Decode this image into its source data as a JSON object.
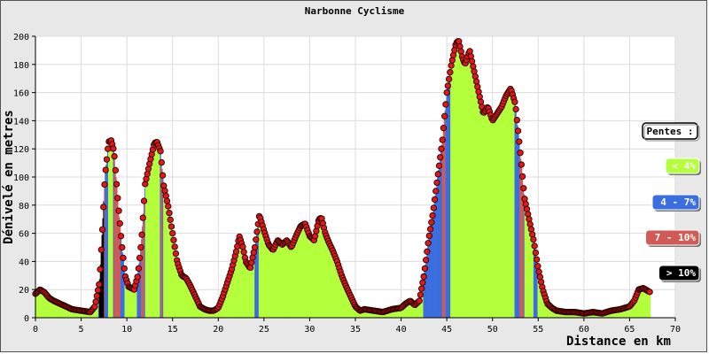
{
  "chart_data": {
    "type": "area",
    "title": "Narbonne Cyclisme",
    "xlabel": "Distance en km",
    "ylabel": "Dénivelé en metres",
    "xlim": [
      0,
      70
    ],
    "ylim": [
      0,
      200
    ],
    "x_ticks": [
      0,
      5,
      10,
      15,
      20,
      25,
      30,
      35,
      40,
      45,
      50,
      55,
      60,
      65,
      70
    ],
    "y_ticks": [
      0,
      20,
      40,
      60,
      80,
      100,
      120,
      140,
      160,
      180,
      200
    ],
    "grid": true,
    "legend_position": "right",
    "legend": {
      "title": "Pentes :",
      "items": [
        {
          "label": "< 4%",
          "color": "#b4ff3c",
          "text_color": "#ffffff"
        },
        {
          "label": "4 - 7%",
          "color": "#3b6fe0",
          "text_color": "#ffffff"
        },
        {
          "label": "7 - 10%",
          "color": "#d05a55",
          "text_color": "#ffffff"
        },
        {
          "label": "> 10%",
          "color": "#000000",
          "text_color": "#ffffff"
        }
      ]
    },
    "profile": [
      [
        0,
        17
      ],
      [
        0.5,
        20
      ],
      [
        1,
        18
      ],
      [
        1.5,
        14
      ],
      [
        2,
        12
      ],
      [
        3,
        9
      ],
      [
        4,
        6
      ],
      [
        5,
        5
      ],
      [
        6,
        4
      ],
      [
        6.5,
        8
      ],
      [
        7,
        25
      ],
      [
        7.3,
        60
      ],
      [
        7.6,
        100
      ],
      [
        8,
        125
      ],
      [
        8.3,
        126
      ],
      [
        8.6,
        118
      ],
      [
        9,
        85
      ],
      [
        9.4,
        55
      ],
      [
        9.8,
        30
      ],
      [
        10.2,
        22
      ],
      [
        10.8,
        20
      ],
      [
        11.2,
        30
      ],
      [
        11.6,
        55
      ],
      [
        12,
        95
      ],
      [
        12.5,
        110
      ],
      [
        13,
        124
      ],
      [
        13.3,
        125
      ],
      [
        13.7,
        118
      ],
      [
        14,
        95
      ],
      [
        14.5,
        80
      ],
      [
        15,
        60
      ],
      [
        15.5,
        40
      ],
      [
        16,
        30
      ],
      [
        16.5,
        28
      ],
      [
        17,
        22
      ],
      [
        17.5,
        15
      ],
      [
        18,
        8
      ],
      [
        18.5,
        6
      ],
      [
        19,
        5
      ],
      [
        19.5,
        5
      ],
      [
        20,
        7
      ],
      [
        20.5,
        15
      ],
      [
        21,
        25
      ],
      [
        21.5,
        35
      ],
      [
        22,
        48
      ],
      [
        22.3,
        58
      ],
      [
        22.7,
        50
      ],
      [
        23,
        40
      ],
      [
        23.5,
        35
      ],
      [
        24,
        50
      ],
      [
        24.5,
        73
      ],
      [
        25,
        62
      ],
      [
        25.5,
        52
      ],
      [
        26,
        48
      ],
      [
        26.5,
        55
      ],
      [
        27,
        52
      ],
      [
        27.5,
        55
      ],
      [
        28,
        50
      ],
      [
        28.5,
        58
      ],
      [
        29,
        65
      ],
      [
        29.5,
        67
      ],
      [
        30,
        58
      ],
      [
        30.5,
        55
      ],
      [
        31,
        70
      ],
      [
        31.3,
        71
      ],
      [
        31.7,
        60
      ],
      [
        32,
        55
      ],
      [
        32.5,
        48
      ],
      [
        33,
        40
      ],
      [
        33.5,
        30
      ],
      [
        34,
        22
      ],
      [
        34.5,
        15
      ],
      [
        35,
        8
      ],
      [
        35.5,
        5
      ],
      [
        36,
        6
      ],
      [
        37,
        5
      ],
      [
        38,
        4
      ],
      [
        39,
        6
      ],
      [
        40,
        7
      ],
      [
        40.5,
        10
      ],
      [
        41,
        12
      ],
      [
        41.5,
        9
      ],
      [
        42,
        12
      ],
      [
        42.5,
        30
      ],
      [
        43,
        55
      ],
      [
        43.5,
        75
      ],
      [
        44,
        100
      ],
      [
        44.5,
        125
      ],
      [
        45,
        160
      ],
      [
        45.5,
        180
      ],
      [
        46,
        195
      ],
      [
        46.3,
        197
      ],
      [
        46.7,
        185
      ],
      [
        47,
        180
      ],
      [
        47.5,
        190
      ],
      [
        48,
        175
      ],
      [
        48.5,
        160
      ],
      [
        49,
        145
      ],
      [
        49.5,
        150
      ],
      [
        50,
        140
      ],
      [
        50.5,
        145
      ],
      [
        51,
        150
      ],
      [
        51.5,
        158
      ],
      [
        52,
        163
      ],
      [
        52.5,
        152
      ],
      [
        53,
        120
      ],
      [
        53.5,
        85
      ],
      [
        54,
        70
      ],
      [
        54.5,
        55
      ],
      [
        55,
        35
      ],
      [
        55.5,
        20
      ],
      [
        56,
        10
      ],
      [
        56.5,
        7
      ],
      [
        57,
        5
      ],
      [
        58,
        4
      ],
      [
        59,
        4
      ],
      [
        60,
        3
      ],
      [
        61,
        4
      ],
      [
        62,
        3
      ],
      [
        63,
        5
      ],
      [
        64,
        6
      ],
      [
        65,
        8
      ],
      [
        65.5,
        12
      ],
      [
        66,
        20
      ],
      [
        66.5,
        21
      ],
      [
        67,
        19
      ],
      [
        67.3,
        18
      ]
    ]
  }
}
